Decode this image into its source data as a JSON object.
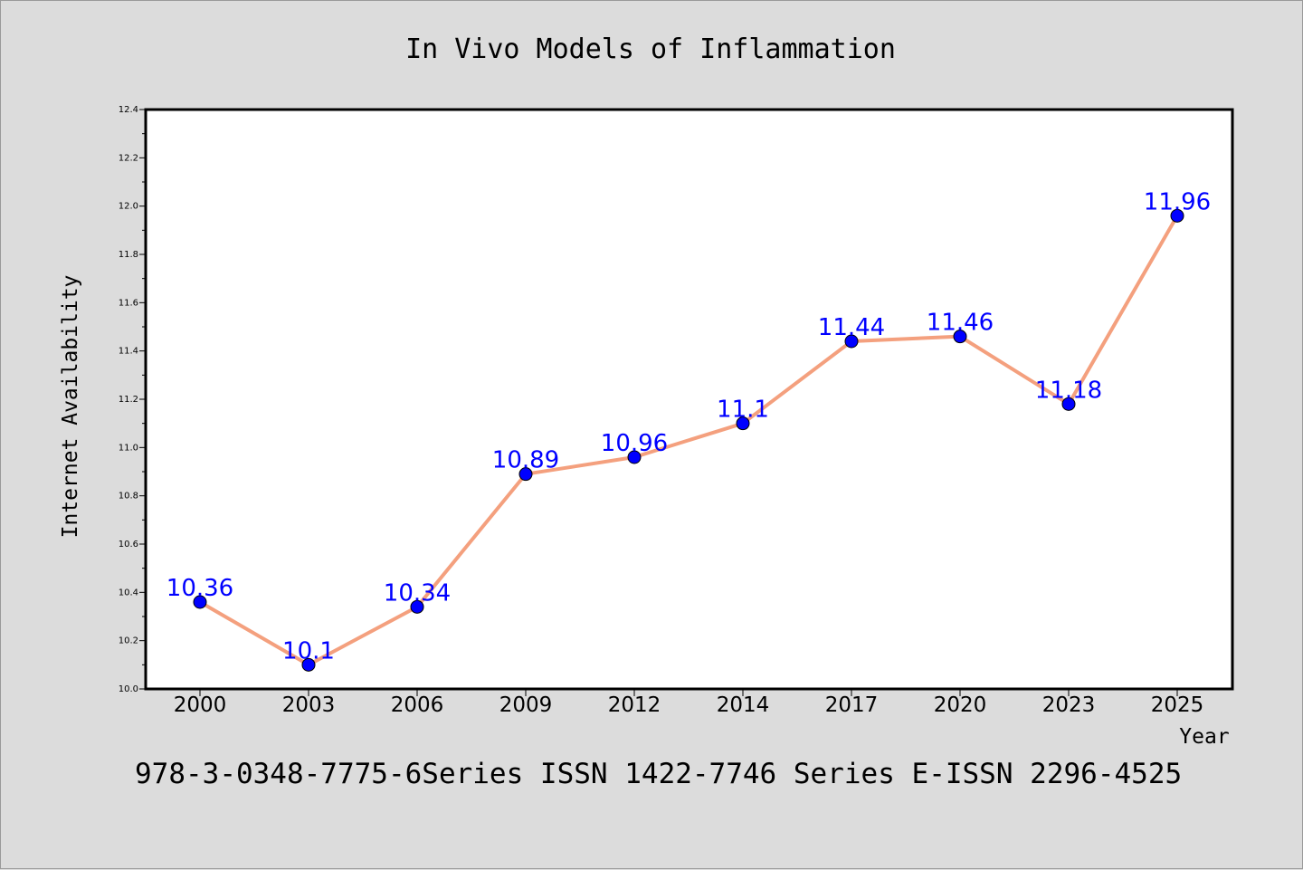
{
  "chart_data": {
    "type": "line",
    "title": "In Vivo Models of Inflammation",
    "xlabel": "Year",
    "ylabel": "Internet Availability",
    "categories": [
      "2000",
      "2003",
      "2006",
      "2009",
      "2012",
      "2014",
      "2017",
      "2020",
      "2023",
      "2025"
    ],
    "series": [
      {
        "values": [
          10.36,
          10.1,
          10.34,
          10.89,
          10.96,
          11.1,
          11.44,
          11.46,
          11.18,
          11.96
        ],
        "labels": [
          "10.36",
          "10.1",
          "10.34",
          "10.89",
          "10.96",
          "11.1",
          "11.44",
          "11.46",
          "11.18",
          "11.96"
        ],
        "line_color": "#f4a07e",
        "marker_color": "#0000ff",
        "label_color": "#0000ff"
      }
    ],
    "ylim": [
      10.0,
      12.4
    ],
    "yticks": [
      "10.0",
      "10.2",
      "10.4",
      "10.6",
      "10.8",
      "11.0",
      "11.2",
      "11.4",
      "11.6",
      "11.8",
      "12.0",
      "12.2",
      "12.4"
    ],
    "grid": false,
    "legend": "none"
  },
  "footer": "978-3-0348-7775-6Series ISSN 1422-7746 Series E-ISSN 2296-4525",
  "colors": {
    "background": "#dcdcdc",
    "plot_background": "#ffffff",
    "axes": "#000000"
  }
}
